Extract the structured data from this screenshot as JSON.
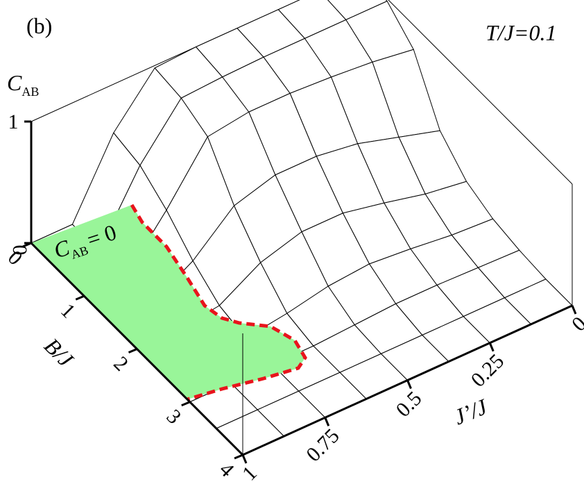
{
  "chart_data": {
    "type": "surface3d",
    "panel_label": "(b)",
    "annotation": "T/J=0.1",
    "z_label": {
      "main": "C",
      "sub": "AB"
    },
    "region_label": {
      "main": "C",
      "sub": "AB",
      "rest": "= 0"
    },
    "b_label": "B/J",
    "j_label": "J’/J",
    "b": [
      0,
      0.5,
      1,
      1.5,
      2,
      2.5,
      3,
      3.5,
      4
    ],
    "j": [
      0,
      0.125,
      0.25,
      0.375,
      0.5,
      0.625,
      0.75,
      0.875,
      1
    ],
    "z": [
      [
        1,
        1,
        1,
        1,
        1,
        0.98,
        0.6,
        0,
        0
      ],
      [
        0.98,
        0.98,
        0.98,
        0.98,
        0.97,
        0.95,
        0.55,
        0,
        0
      ],
      [
        0.8,
        0.85,
        0.88,
        0.9,
        0.9,
        0.85,
        0.4,
        0,
        0
      ],
      [
        0.35,
        0.45,
        0.55,
        0.6,
        0.6,
        0.5,
        0.2,
        0,
        0
      ],
      [
        0.15,
        0.2,
        0.28,
        0.35,
        0.35,
        0.25,
        0.05,
        0,
        0
      ],
      [
        0.06,
        0.08,
        0.12,
        0.15,
        0.12,
        0.05,
        0,
        0,
        0
      ],
      [
        0.02,
        0.03,
        0.04,
        0.04,
        0.02,
        0,
        0,
        0,
        0
      ],
      [
        0,
        0,
        0,
        0,
        0,
        0,
        0,
        0,
        0
      ],
      [
        0,
        0,
        0,
        0,
        0,
        0,
        0,
        0,
        0
      ]
    ],
    "zlim": [
      0,
      1
    ],
    "zticks": [
      0,
      1
    ],
    "blim": [
      0,
      4
    ],
    "bticks": [
      0,
      1,
      2,
      3,
      4
    ],
    "jlim": [
      1,
      0
    ],
    "jticks": [
      0,
      0.25,
      0.5,
      0.75,
      1
    ],
    "mesh_color": "#000000",
    "region_color": "#99f599",
    "boundary_color": "#e8141c"
  }
}
